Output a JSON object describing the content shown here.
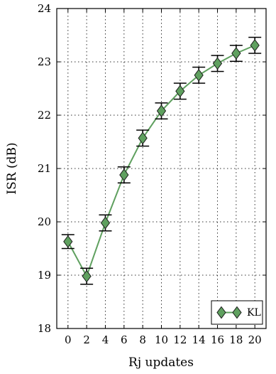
{
  "chart_data": {
    "type": "line",
    "title": "",
    "xlabel": "Rj updates",
    "ylabel": "ISR (dB)",
    "x": [
      0,
      2,
      4,
      6,
      8,
      10,
      12,
      14,
      16,
      18,
      20
    ],
    "x_ticks": [
      "0",
      "2",
      "4",
      "6",
      "8",
      "10",
      "12",
      "14",
      "16",
      "18",
      "20"
    ],
    "xlim": [
      -1.2,
      21.2
    ],
    "ylim": [
      18,
      24
    ],
    "y_ticks": [
      "18",
      "19",
      "20",
      "21",
      "22",
      "23",
      "24"
    ],
    "grid": true,
    "legend_position": "bottom-right",
    "series": [
      {
        "name": "KL",
        "color": "#5fa05f",
        "marker": "diamond",
        "values": [
          19.63,
          18.98,
          19.98,
          20.88,
          21.57,
          22.08,
          22.45,
          22.75,
          22.97,
          23.16,
          23.31
        ],
        "errors": [
          0.13,
          0.15,
          0.15,
          0.15,
          0.15,
          0.15,
          0.15,
          0.15,
          0.15,
          0.15,
          0.15
        ]
      }
    ]
  }
}
